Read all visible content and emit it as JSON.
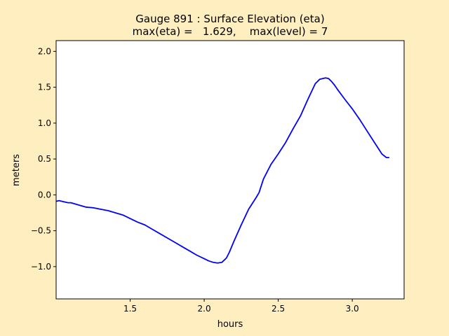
{
  "figure": {
    "background": "#ffeebf",
    "line_color": "#0000ff"
  },
  "chart_data": {
    "type": "line",
    "title_line1": "Gauge 891 : Surface Elevation (eta)",
    "title_line2": "max(eta) =   1.629,    max(level) = 7",
    "xlabel": "hours",
    "ylabel": "meters",
    "xlim": [
      1.0,
      3.35
    ],
    "ylim": [
      -1.45,
      2.15
    ],
    "xticks": [
      1.5,
      2.0,
      2.5,
      3.0
    ],
    "xtick_labels": [
      "1.5",
      "2.0",
      "2.5",
      "3.0"
    ],
    "yticks": [
      -1.0,
      -0.5,
      0.0,
      0.5,
      1.0,
      1.5,
      2.0
    ],
    "ytick_labels": [
      "−1.0",
      "−0.5",
      "0.0",
      "0.5",
      "1.0",
      "1.5",
      "2.0"
    ],
    "grid": false,
    "series": [
      {
        "x": [
          1.0,
          1.02,
          1.04,
          1.06,
          1.08,
          1.1,
          1.15,
          1.2,
          1.25,
          1.3,
          1.35,
          1.4,
          1.45,
          1.5,
          1.55,
          1.6,
          1.65,
          1.7,
          1.75,
          1.8,
          1.85,
          1.9,
          1.95,
          2.0,
          2.03,
          2.06,
          2.09,
          2.12,
          2.15,
          2.17,
          2.2,
          2.25,
          2.3,
          2.35,
          2.37,
          2.4,
          2.45,
          2.5,
          2.55,
          2.6,
          2.65,
          2.7,
          2.75,
          2.78,
          2.8,
          2.82,
          2.84,
          2.86,
          2.88,
          2.9,
          2.95,
          3.0,
          3.05,
          3.1,
          3.15,
          3.2,
          3.23,
          3.25
        ],
        "y": [
          -0.09,
          -0.08,
          -0.09,
          -0.1,
          -0.11,
          -0.11,
          -0.14,
          -0.17,
          -0.18,
          -0.2,
          -0.22,
          -0.25,
          -0.28,
          -0.33,
          -0.38,
          -0.42,
          -0.48,
          -0.54,
          -0.6,
          -0.66,
          -0.72,
          -0.78,
          -0.84,
          -0.89,
          -0.92,
          -0.94,
          -0.95,
          -0.94,
          -0.88,
          -0.8,
          -0.65,
          -0.42,
          -0.2,
          -0.04,
          0.03,
          0.22,
          0.42,
          0.57,
          0.73,
          0.92,
          1.1,
          1.33,
          1.55,
          1.61,
          1.62,
          1.63,
          1.62,
          1.58,
          1.53,
          1.47,
          1.33,
          1.2,
          1.05,
          0.89,
          0.73,
          0.57,
          0.52,
          0.52
        ]
      }
    ]
  }
}
